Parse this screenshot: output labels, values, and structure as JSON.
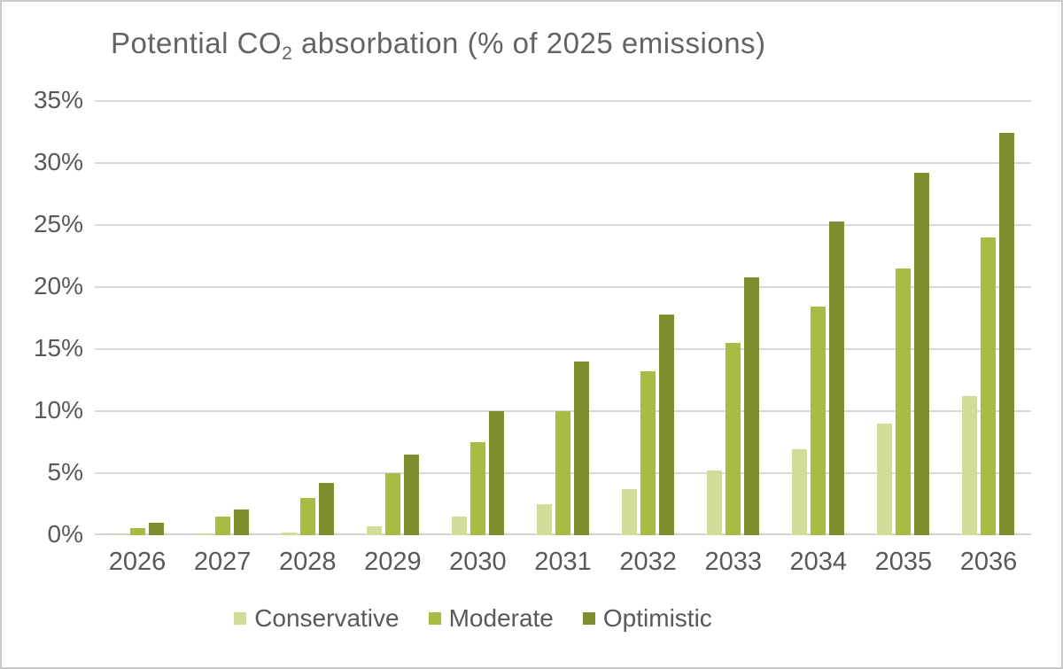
{
  "window": {
    "background": "#ffffff",
    "border_color": "#c9c9c9"
  },
  "title_parts": {
    "prefix": "Potential CO",
    "sub": "2",
    "suffix": " absorbation (% of 2025 emissions)"
  },
  "chart_data": {
    "type": "bar",
    "title": "Potential CO2 absorbation (% of 2025 emissions)",
    "categories": [
      "2026",
      "2027",
      "2028",
      "2029",
      "2030",
      "2031",
      "2032",
      "2033",
      "2034",
      "2035",
      "2036"
    ],
    "series": [
      {
        "name": "Conservative",
        "color": "#d2dc99",
        "values": [
          0.1,
          0.15,
          0.25,
          0.7,
          1.5,
          2.5,
          3.7,
          5.2,
          6.9,
          9.0,
          11.2
        ]
      },
      {
        "name": "Moderate",
        "color": "#a8bc44",
        "values": [
          0.6,
          1.5,
          3.0,
          5.0,
          7.5,
          10.0,
          13.2,
          15.5,
          18.4,
          21.5,
          24.0
        ]
      },
      {
        "name": "Optimistic",
        "color": "#7e8e2f",
        "values": [
          1.0,
          2.1,
          4.2,
          6.5,
          10.0,
          14.0,
          17.8,
          20.8,
          25.3,
          29.2,
          32.4
        ]
      }
    ],
    "xlabel": "",
    "ylabel": "",
    "ylim": [
      0,
      35
    ],
    "ytick_step": 5,
    "ytick_labels": [
      "0%",
      "5%",
      "10%",
      "15%",
      "20%",
      "25%",
      "30%",
      "35%"
    ],
    "grid": true,
    "legend_position": "bottom",
    "axis_text_color": "#595959",
    "title_text_color": "#636363",
    "gridline_color": "#d9d9d9"
  }
}
